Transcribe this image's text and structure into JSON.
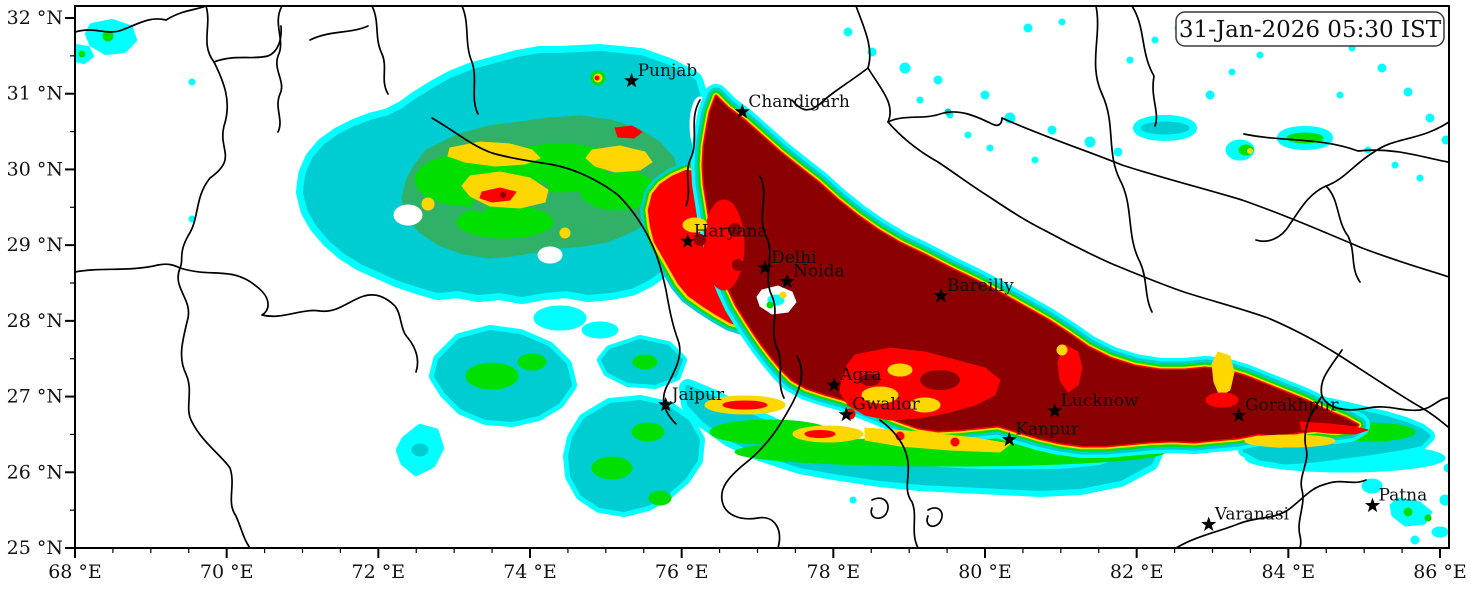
{
  "timestamp": {
    "text": "31-Jan-2026 05:30 IST"
  },
  "map": {
    "extent": {
      "lon_min": 68,
      "lon_max": 86.13,
      "lat_min": 25,
      "lat_max": 32.16
    },
    "x_axis": {
      "unit": "°E",
      "major_ticks": [
        68,
        70,
        72,
        74,
        76,
        78,
        80,
        82,
        84,
        86
      ],
      "minor_step": 0.5
    },
    "y_axis": {
      "unit": "°N",
      "major_ticks": [
        25,
        26,
        27,
        28,
        29,
        30,
        31,
        32
      ],
      "minor_step": 0.5
    },
    "cities": [
      {
        "name": "Punjab",
        "lat": 31.17,
        "lon": 75.34
      },
      {
        "name": "Chandigarh",
        "lat": 30.76,
        "lon": 76.8
      },
      {
        "name": "Haryana",
        "lat": 29.05,
        "lon": 76.08
      },
      {
        "name": "Delhi",
        "lat": 28.7,
        "lon": 77.1
      },
      {
        "name": "Noida",
        "lat": 28.52,
        "lon": 77.39
      },
      {
        "name": "Bareilly",
        "lat": 28.33,
        "lon": 79.42
      },
      {
        "name": "Jaipur",
        "lat": 26.89,
        "lon": 75.79
      },
      {
        "name": "Agra",
        "lat": 27.15,
        "lon": 78.01
      },
      {
        "name": "Gwalior",
        "lat": 26.76,
        "lon": 78.17
      },
      {
        "name": "Kanpur",
        "lat": 26.43,
        "lon": 80.32
      },
      {
        "name": "Lucknow",
        "lat": 26.81,
        "lon": 80.92
      },
      {
        "name": "Gorakhpur",
        "lat": 26.75,
        "lon": 83.35
      },
      {
        "name": "Varanasi",
        "lat": 25.31,
        "lon": 82.95
      },
      {
        "name": "Patna",
        "lat": 25.56,
        "lon": 85.11
      }
    ],
    "palette": {
      "background": "#FFFFFF",
      "level1_cyan": "#00FFFF",
      "level2_turquoise": "#00CDD1",
      "level3_seagreen": "#2FB267",
      "level4_green": "#00DF00",
      "level5_yellow": "#FFD700",
      "level6_red": "#FF0000",
      "level7_darkred": "#8B0000",
      "boundary": "#000000",
      "text": "#111111"
    }
  }
}
